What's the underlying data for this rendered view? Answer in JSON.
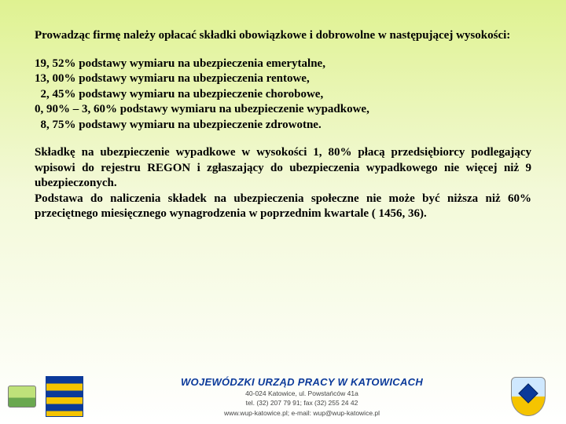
{
  "intro": "Prowadząc firmę należy opłacać składki obowiązkowe i dobrowolne w następującej wysokości:",
  "rates": {
    "r1": "19, 52% podstawy wymiaru na ubezpieczenia emerytalne,",
    "r2": "13, 00% podstawy wymiaru na ubezpieczenia rentowe,",
    "r3": "  2, 45% podstawy wymiaru na ubezpieczenie chorobowe,",
    "r4": "0, 90% – 3, 60% podstawy wymiaru na ubezpieczenie wypadkowe,",
    "r5": "  8, 75% podstawy wymiaru na ubezpieczenie zdrowotne."
  },
  "note": "Składkę na ubezpieczenie wypadkowe w wysokości 1, 80% płacą przedsiębiorcy podlegający wpisowi do rejestru REGON i zgłaszający do ubezpieczenia wypadkowego nie więcej niż 9 ubezpieczonych.\nPodstawa do naliczenia składek na ubezpieczenia społeczne nie może być niższa niż 60% przeciętnego miesięcznego wynagrodzenia w poprzednim kwartale ( 1456, 36).",
  "footer": {
    "title": "WOJEWÓDZKI URZĄD PRACY W KATOWICACH",
    "line1": "40-024 Katowice, ul. Powstańców 41a",
    "line2": "tel. (32) 207 79 91; fax (32) 255 24 42",
    "line3": "www.wup-katowice.pl; e-mail: wup@wup-katowice.pl"
  }
}
